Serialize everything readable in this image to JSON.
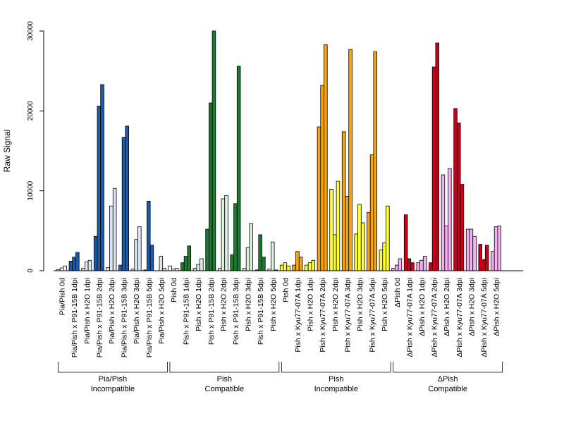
{
  "chart_data": {
    "type": "bar",
    "title": "",
    "xlabel": "",
    "ylabel": "Raw Signal",
    "ylim": [
      0,
      30000
    ],
    "yticks": [
      0,
      10000,
      20000,
      30000
    ],
    "grid": false,
    "legend": "none",
    "bar_border_color": "#000000",
    "categories": [
      "Pia/Pish 0d",
      "Pia/Pish x P91-15B 1dpi",
      "Pia/Pish x H2O 1dpi",
      "Pia/Pish x P91-15B 2dpi",
      "Pia/Pish x H2O 2dpi",
      "Pia/Pish x P91-15B 3dpi",
      "Pia/Pish x H2O 3dpi",
      "Pia/Pish x P91-15B 5dpi",
      "Pia/Pish x H2O 5dpi",
      "Pish 0d",
      "Pish x P91-15B 1dpi",
      "Pish x H2O 1dpi",
      "Pish x P91-15B 2dpi",
      "Pish x H2O 2dpi",
      "Pish x P91-15B 3dpi",
      "Pish x H2O 3dpi",
      "Pish x P91-15B 5dpi",
      "Pish x H2O 5dpi",
      "Pish 0d",
      "Pish x Kyu77-07A 1dpi",
      "Pish x H2O 1dpi",
      "Pish x Kyu77-07A 2dpi",
      "Pish x H2O 2dpi",
      "Pish x Kyu77-07A 3dpi",
      "Pish x H2O 3dpi",
      "Pish x Kyu77-07A 5dpi",
      "Pish x H2O 5dpi",
      "ΔPish 0d",
      "ΔPish x Kyu77-07A 1dpi",
      "ΔPish x H2O 1dpi",
      "ΔPish x Kyu77-07A 2dpi",
      "ΔPish x H2O 2dpi",
      "ΔPish x Kyu77-07A 3dpi",
      "ΔPish x H2O 3dpi",
      "ΔPish x Kyu77-07A 5dpi",
      "ΔPish x H2O 5dpi"
    ],
    "colors": [
      "#ffffff",
      "#1f5aa6",
      "#dce6f2",
      "#1f5aa6",
      "#dce6f2",
      "#1f5aa6",
      "#dce6f2",
      "#1f5aa6",
      "#dce6f2",
      "#ffffff",
      "#1e7a33",
      "#dcefdc",
      "#1e7a33",
      "#dcefdc",
      "#1e7a33",
      "#dcefdc",
      "#1e7a33",
      "#dcefdc",
      "#ffff33",
      "#f5a511",
      "#ffff33",
      "#f5a511",
      "#ffff33",
      "#f5a511",
      "#ffff33",
      "#f5a511",
      "#ffff33",
      "#f4b3f0",
      "#cc0018",
      "#f4b3f0",
      "#cc0018",
      "#f4b3f0",
      "#cc0018",
      "#f4b3f0",
      "#cc0018",
      "#f4b3f0"
    ],
    "replicate_values": [
      [
        150,
        350,
        600
      ],
      [
        1200,
        1700,
        2300
      ],
      [
        300,
        1100,
        1300
      ],
      [
        4300,
        20600,
        23300
      ],
      [
        400,
        8100,
        10300
      ],
      [
        700,
        16700,
        18100
      ],
      [
        200,
        3900,
        5500
      ],
      [
        100,
        8700,
        3200
      ],
      [
        0,
        1800,
        300
      ],
      [
        600,
        200,
        300
      ],
      [
        1000,
        1800,
        3100
      ],
      [
        300,
        800,
        1500
      ],
      [
        5200,
        21000,
        30000
      ],
      [
        300,
        9000,
        9400
      ],
      [
        2000,
        8400,
        25600
      ],
      [
        300,
        2900,
        5900
      ],
      [
        100,
        4500,
        1700
      ],
      [
        200,
        3600,
        100
      ],
      [
        700,
        1000,
        600
      ],
      [
        700,
        2400,
        1700
      ],
      [
        700,
        1000,
        1300
      ],
      [
        18000,
        23200,
        28300
      ],
      [
        10200,
        4500,
        11200
      ],
      [
        17400,
        9300,
        27700
      ],
      [
        4600,
        8300,
        6000
      ],
      [
        7300,
        14500,
        27400
      ],
      [
        2600,
        3500,
        8100
      ],
      [
        300,
        700,
        1500
      ],
      [
        7000,
        1500,
        1000
      ],
      [
        1000,
        1300,
        1800
      ],
      [
        1000,
        25500,
        28500
      ],
      [
        12000,
        5600,
        12800
      ],
      [
        20300,
        18500,
        10800
      ],
      [
        5200,
        5200,
        4300
      ],
      [
        3300,
        1400,
        3200
      ],
      [
        2400,
        5500,
        5600
      ]
    ],
    "groups": [
      {
        "line1": "Pia/Pish",
        "line2": "Incompatible",
        "from": 0,
        "to": 8
      },
      {
        "line1": "Pish",
        "line2": "Compatible",
        "from": 9,
        "to": 17
      },
      {
        "line1": "Pish",
        "line2": "Incompatible",
        "from": 18,
        "to": 26
      },
      {
        "line1": "ΔPish",
        "line2": "Compatible",
        "from": 27,
        "to": 35
      }
    ]
  }
}
